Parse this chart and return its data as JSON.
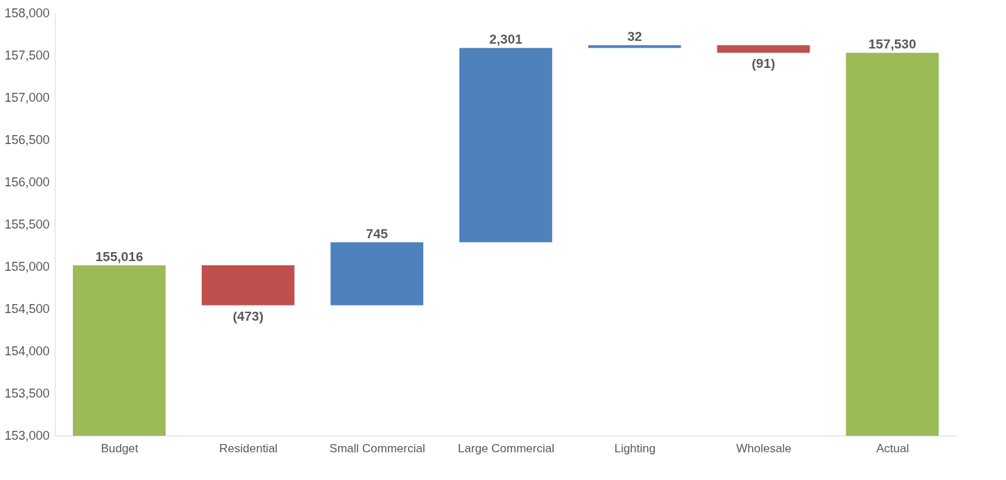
{
  "chart_data": {
    "type": "bar",
    "categories": [
      "Budget",
      "Residential",
      "Small Commercial",
      "Large Commercial",
      "Lighting",
      "Wholesale",
      "Actual"
    ],
    "values": [
      155016,
      -473,
      745,
      2301,
      32,
      -91,
      157530
    ],
    "base": [
      0,
      155016,
      154543,
      155288,
      157589,
      157621,
      0
    ],
    "colors": [
      "#9bbb59",
      "#c0504d",
      "#4f81bd",
      "#4f81bd",
      "#4f81bd",
      "#c0504d",
      "#9bbb59"
    ],
    "value_labels": [
      "155,016",
      "(473)",
      "745",
      "2,301",
      "32",
      "(91)",
      "157,530"
    ],
    "ylim": [
      153000,
      158000
    ],
    "yticks": [
      {
        "value": 153000,
        "label": "153,000"
      },
      {
        "value": 153500,
        "label": "153,500"
      },
      {
        "value": 154000,
        "label": "154,000"
      },
      {
        "value": 154500,
        "label": "154,500"
      },
      {
        "value": 155000,
        "label": "155,000"
      },
      {
        "value": 155500,
        "label": "155,500"
      },
      {
        "value": 156000,
        "label": "156,000"
      },
      {
        "value": 156500,
        "label": "156,500"
      },
      {
        "value": 157000,
        "label": "157,000"
      },
      {
        "value": 157500,
        "label": "157,500"
      },
      {
        "value": 158000,
        "label": "158,000"
      }
    ],
    "grid": false
  }
}
